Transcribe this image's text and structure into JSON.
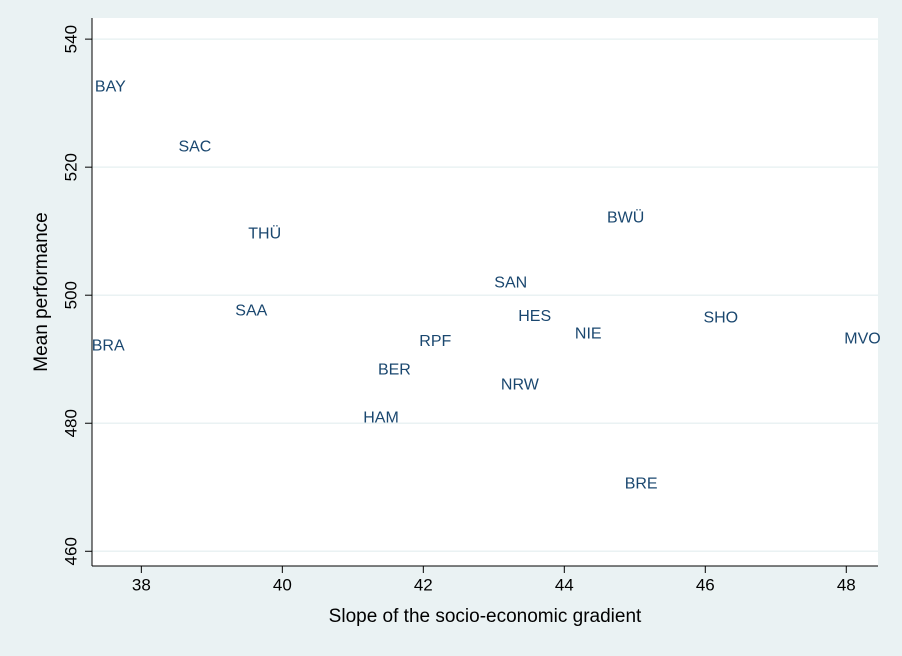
{
  "chart_data": {
    "type": "scatter",
    "x_label": "Slope of the socio-economic gradient",
    "y_label": "Mean performance",
    "labels": [
      "BAY",
      "SAC",
      "THÜ",
      "SAA",
      "BRA",
      "BER",
      "HAM",
      "RPF",
      "SAN",
      "HES",
      "NRW",
      "NIE",
      "BWÜ",
      "BRE",
      "SHO",
      "MVO"
    ],
    "x": [
      37.56,
      38.76,
      39.75,
      39.56,
      37.53,
      41.59,
      41.4,
      42.17,
      43.24,
      43.58,
      43.37,
      44.34,
      44.87,
      45.09,
      46.22,
      48.23
    ],
    "y": [
      532.5,
      523.1,
      509.5,
      497.5,
      492.0,
      488.3,
      480.8,
      492.7,
      501.9,
      496.6,
      485.9,
      493.9,
      512.0,
      470.5,
      496.4,
      493.1
    ],
    "color": "#1a476f",
    "xlim": [
      37.3,
      48.45
    ],
    "ylim": [
      457.7,
      543.3
    ],
    "xticks": [
      38,
      40,
      42,
      44,
      46,
      48
    ],
    "yticks": [
      460,
      480,
      500,
      520,
      540
    ],
    "grid": true
  }
}
